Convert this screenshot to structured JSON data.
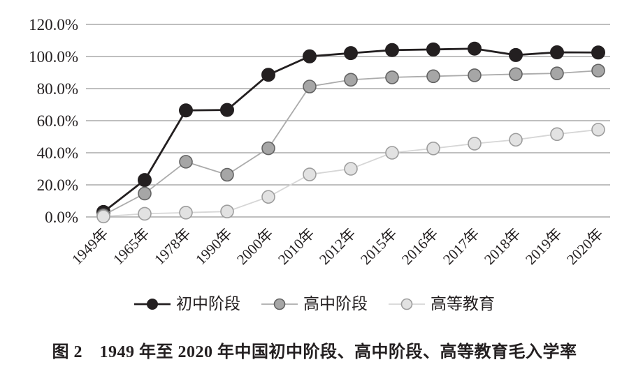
{
  "figure": {
    "caption": "图 2　1949 年至 2020 年中国初中阶段、高中阶段、高等教育毛入学率"
  },
  "colors": {
    "background": "#ffffff",
    "grid_line": "#999999",
    "text": "#231f20"
  },
  "chart_data": {
    "type": "line",
    "title": "",
    "xlabel": "",
    "ylabel": "",
    "categories": [
      "1949年",
      "1965年",
      "1978年",
      "1990年",
      "2000年",
      "2010年",
      "2012年",
      "2015年",
      "2016年",
      "2017年",
      "2018年",
      "2019年",
      "2020年"
    ],
    "ylim": [
      0,
      120
    ],
    "ytick_values": [
      0,
      20,
      40,
      60,
      80,
      100,
      120
    ],
    "ytick_labels": [
      "0.0%",
      "20.0%",
      "40.0%",
      "60.0%",
      "80.0%",
      "100.0%",
      "120.0%"
    ],
    "grid": "horizontal",
    "legend_position": "bottom",
    "series": [
      {
        "id": "junior-secondary",
        "name": "初中阶段",
        "values": [
          3.1,
          23.0,
          66.4,
          66.7,
          88.6,
          100.1,
          102.1,
          104.0,
          104.4,
          104.9,
          100.9,
          102.6,
          102.5
        ],
        "line_color": "#231f20",
        "line_width": 2.8,
        "marker_fill": "#231f20",
        "marker_stroke": "#231f20",
        "marker_stroke_width": 1,
        "marker_radius": 9.5
      },
      {
        "id": "senior-secondary",
        "name": "高中阶段",
        "values": [
          1.1,
          14.6,
          34.4,
          26.3,
          42.8,
          81.3,
          85.5,
          87.0,
          87.7,
          88.3,
          89.0,
          89.5,
          91.2
        ],
        "line_color": "#ababab",
        "line_width": 1.8,
        "marker_fill": "#a6a6a6",
        "marker_stroke": "#636363",
        "marker_stroke_width": 1.6,
        "marker_radius": 9
      },
      {
        "id": "higher-education",
        "name": "高等教育",
        "values": [
          0.3,
          2.0,
          2.7,
          3.4,
          12.5,
          26.5,
          30.0,
          40.0,
          42.7,
          45.7,
          48.1,
          51.6,
          54.4
        ],
        "line_color": "#d6d6d6",
        "line_width": 1.8,
        "marker_fill": "#e2e2e2",
        "marker_stroke": "#9d9d9d",
        "marker_stroke_width": 1.6,
        "marker_radius": 9
      }
    ]
  }
}
